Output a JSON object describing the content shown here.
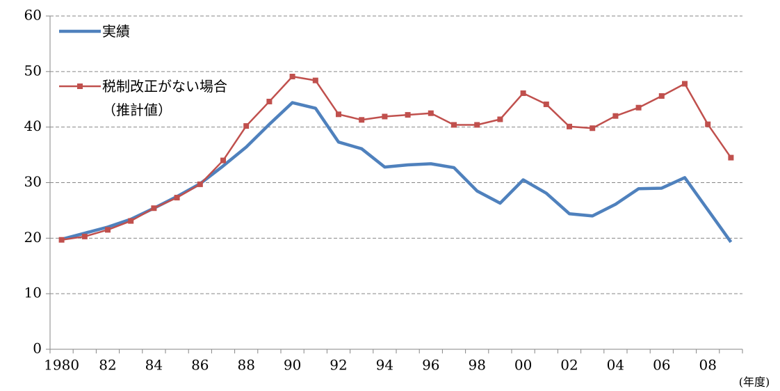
{
  "chart_data": {
    "type": "line",
    "x_label": "(年度)",
    "categories": [
      "1980",
      null,
      "82",
      null,
      "84",
      null,
      "86",
      null,
      "88",
      null,
      "90",
      null,
      "92",
      null,
      "94",
      null,
      "96",
      null,
      "98",
      null,
      "00",
      null,
      "02",
      null,
      "04",
      null,
      "06",
      null,
      "08",
      null
    ],
    "series": [
      {
        "name": "実績",
        "color": "#4f81bd",
        "marker": false,
        "values": [
          19.8,
          20.9,
          22.0,
          23.4,
          25.4,
          27.5,
          29.8,
          33.0,
          36.4,
          40.5,
          44.4,
          43.4,
          37.3,
          36.1,
          32.8,
          33.2,
          33.4,
          32.7,
          28.5,
          26.3,
          30.5,
          28.1,
          24.4,
          24.0,
          26.1,
          28.9,
          29.0,
          30.9,
          25.1,
          19.3
        ]
      },
      {
        "name": "税制改正がない場合\n（推計値）",
        "color": "#c0504d",
        "marker": true,
        "values": [
          19.7,
          20.3,
          21.5,
          23.1,
          25.4,
          27.3,
          29.7,
          34.0,
          40.2,
          44.6,
          49.1,
          48.4,
          42.3,
          41.3,
          41.9,
          42.2,
          42.5,
          40.4,
          40.4,
          41.4,
          46.1,
          44.1,
          40.1,
          39.8,
          42.0,
          43.5,
          45.6,
          47.8,
          40.5,
          34.5
        ]
      }
    ],
    "ylim": [
      0,
      60
    ],
    "yticks": [
      0,
      10,
      20,
      30,
      40,
      50,
      60
    ],
    "grid": true,
    "legend": "upper left"
  }
}
